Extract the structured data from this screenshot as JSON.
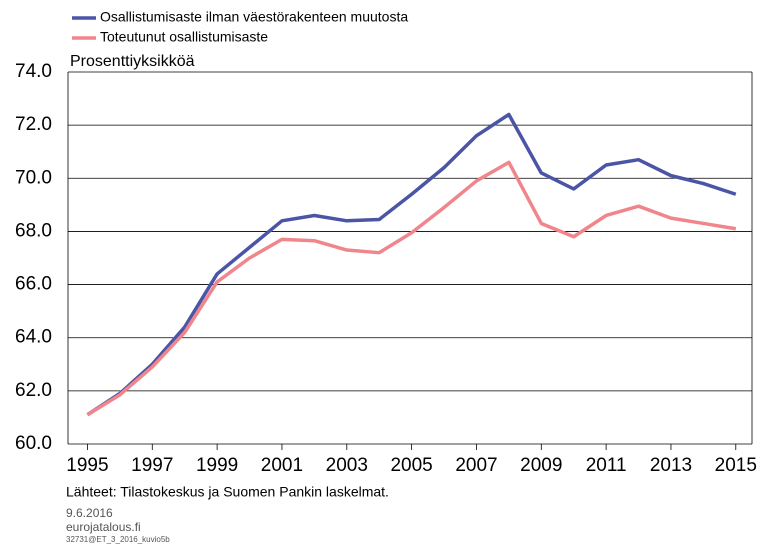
{
  "chart_data": {
    "type": "line",
    "y_label": "Prosenttiyksikköä",
    "source": "Lähteet: Tilastokeskus ja Suomen Pankin laskelmat.",
    "date": "9.6.2016",
    "site": "eurojatalous.fi",
    "code": "32731@ET_3_2016_kuvio5b",
    "x": [
      1995,
      1996,
      1997,
      1998,
      1999,
      2000,
      2001,
      2002,
      2003,
      2004,
      2005,
      2006,
      2007,
      2008,
      2009,
      2010,
      2011,
      2012,
      2013,
      2014,
      2015
    ],
    "series": [
      {
        "name": "Osallistumisaste ilman väestörakenteen muutosta",
        "color": "#4b55a5",
        "values": [
          61.1,
          61.9,
          63.0,
          64.4,
          66.4,
          67.4,
          68.4,
          68.6,
          68.4,
          68.45,
          69.4,
          70.4,
          71.6,
          72.4,
          70.2,
          69.6,
          70.5,
          70.7,
          70.1,
          69.8,
          69.4
        ]
      },
      {
        "name": "Toteutunut osallistumisaste",
        "color": "#f0868c",
        "values": [
          61.1,
          61.85,
          62.9,
          64.2,
          66.1,
          67.0,
          67.7,
          67.65,
          67.3,
          67.2,
          67.95,
          68.9,
          69.9,
          70.6,
          68.3,
          67.8,
          68.6,
          68.95,
          68.5,
          68.3,
          68.1
        ]
      }
    ],
    "xlim": [
      1994.4,
      2015.5
    ],
    "xticks": [
      1995,
      1997,
      1999,
      2001,
      2003,
      2005,
      2007,
      2009,
      2011,
      2013,
      2015
    ],
    "ylim": [
      60,
      74
    ],
    "yticks": [
      {
        "value": 60,
        "label": "60.0"
      },
      {
        "value": 62,
        "label": "62.0"
      },
      {
        "value": 64,
        "label": "64.0"
      },
      {
        "value": 66,
        "label": "66.0"
      },
      {
        "value": 68,
        "label": "68.0"
      },
      {
        "value": 70,
        "label": "70.0"
      },
      {
        "value": 72,
        "label": "72.0"
      },
      {
        "value": 74,
        "label": "74.0"
      }
    ],
    "grid": true
  }
}
